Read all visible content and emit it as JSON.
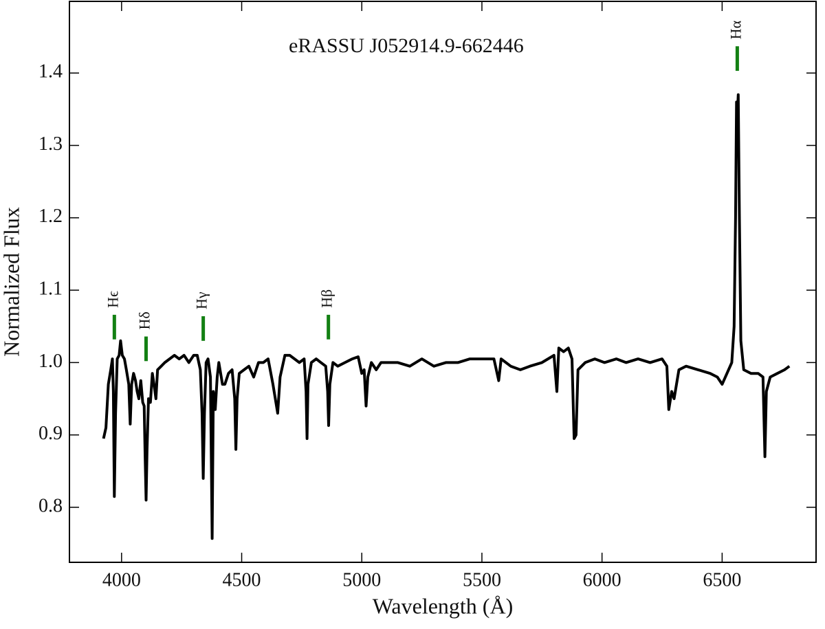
{
  "chart_data": {
    "type": "line",
    "title": "eRASSU J052914.9-662446",
    "x_label": "Wavelength (Å)",
    "y_label": "Normalized Flux",
    "xlim": [
      3783,
      6891
    ],
    "ylim": [
      0.724,
      1.499
    ],
    "xticks": [
      4000,
      4500,
      5000,
      5500,
      6000,
      6500
    ],
    "yticks": [
      0.8,
      0.9,
      {
        "value": 1,
        "label": "1.0"
      },
      1.1,
      1.2,
      1.3,
      1.4
    ],
    "x": [
      3925,
      3935,
      3945,
      3955,
      3962,
      3966,
      3970,
      3975,
      3982,
      3990,
      3996,
      4003,
      4012,
      4020,
      4030,
      4036,
      4042,
      4050,
      4058,
      4065,
      4072,
      4080,
      4088,
      4094,
      4098,
      4102,
      4106,
      4112,
      4120,
      4128,
      4135,
      4143,
      4150,
      4165,
      4180,
      4200,
      4220,
      4240,
      4260,
      4280,
      4300,
      4315,
      4328,
      4335,
      4340,
      4345,
      4352,
      4360,
      4370,
      4377,
      4382,
      4390,
      4398,
      4405,
      4420,
      4430,
      4445,
      4460,
      4471,
      4476,
      4481,
      4490,
      4510,
      4530,
      4550,
      4570,
      4590,
      4610,
      4630,
      4650,
      4660,
      4680,
      4700,
      4720,
      4740,
      4760,
      4768,
      4772,
      4776,
      4790,
      4810,
      4830,
      4850,
      4858,
      4862,
      4867,
      4880,
      4900,
      4930,
      4960,
      4985,
      5000,
      5010,
      5018,
      5025,
      5040,
      5060,
      5080,
      5100,
      5150,
      5200,
      5250,
      5300,
      5350,
      5400,
      5450,
      5500,
      5550,
      5570,
      5580,
      5620,
      5660,
      5700,
      5750,
      5800,
      5812,
      5820,
      5840,
      5860,
      5875,
      5884,
      5892,
      5900,
      5930,
      5970,
      6010,
      6060,
      6100,
      6150,
      6200,
      6250,
      6270,
      6278,
      6290,
      6300,
      6320,
      6350,
      6400,
      6450,
      6480,
      6500,
      6520,
      6540,
      6550,
      6556,
      6560,
      6563,
      6567,
      6572,
      6578,
      6590,
      6620,
      6650,
      6670,
      6678,
      6684,
      6700,
      6730,
      6760,
      6780
    ],
    "series": [
      {
        "color": "#000000",
        "values": [
          0.895,
          0.91,
          0.97,
          0.99,
          1.005,
          0.96,
          0.815,
          0.93,
          1.005,
          1.01,
          1.03,
          1.01,
          1.005,
          0.99,
          0.97,
          0.915,
          0.97,
          0.985,
          0.975,
          0.96,
          0.95,
          0.975,
          0.945,
          0.94,
          0.87,
          0.81,
          0.88,
          0.95,
          0.945,
          0.985,
          0.97,
          0.95,
          0.99,
          0.995,
          1.0,
          1.005,
          1.01,
          1.005,
          1.01,
          1.0,
          1.01,
          1.01,
          0.99,
          0.93,
          0.84,
          0.93,
          1.0,
          1.005,
          0.98,
          0.757,
          0.96,
          0.935,
          0.98,
          1.0,
          0.97,
          0.97,
          0.985,
          0.99,
          0.95,
          0.88,
          0.95,
          0.985,
          0.99,
          0.995,
          0.98,
          1.0,
          1.0,
          1.005,
          0.97,
          0.93,
          0.98,
          1.01,
          1.01,
          1.005,
          1.0,
          1.005,
          0.96,
          0.895,
          0.97,
          1.0,
          1.005,
          1.0,
          0.995,
          0.96,
          0.913,
          0.97,
          1.0,
          0.995,
          1.0,
          1.005,
          1.008,
          0.985,
          0.99,
          0.94,
          0.98,
          1.0,
          0.99,
          1.0,
          1.0,
          1.0,
          0.995,
          1.005,
          0.995,
          1.0,
          1.0,
          1.005,
          1.005,
          1.005,
          0.975,
          1.005,
          0.995,
          0.99,
          0.995,
          1.0,
          1.01,
          0.96,
          1.02,
          1.015,
          1.02,
          1.005,
          0.895,
          0.9,
          0.99,
          1.0,
          1.005,
          1.0,
          1.005,
          1.0,
          1.005,
          1.0,
          1.005,
          0.995,
          0.935,
          0.96,
          0.95,
          0.99,
          0.995,
          0.99,
          0.985,
          0.98,
          0.97,
          0.985,
          1.0,
          1.05,
          1.2,
          1.36,
          1.34,
          1.37,
          1.2,
          1.03,
          0.99,
          0.985,
          0.985,
          0.98,
          0.87,
          0.96,
          0.98,
          0.985,
          0.99,
          0.995
        ]
      }
    ],
    "annotations": [
      {
        "label": "Hϵ",
        "x": 3970,
        "y": [
          1.032,
          1.066
        ]
      },
      {
        "label": "Hδ",
        "x": 4102,
        "y": [
          1.002,
          1.036
        ]
      },
      {
        "label": "Hγ",
        "x": 4340,
        "y": [
          1.03,
          1.064
        ]
      },
      {
        "label": "Hβ",
        "x": 4861,
        "y": [
          1.032,
          1.066
        ]
      },
      {
        "label": "Hα",
        "x": 6563,
        "y": [
          1.403,
          1.437
        ]
      }
    ],
    "annotation_color": "#138013"
  }
}
